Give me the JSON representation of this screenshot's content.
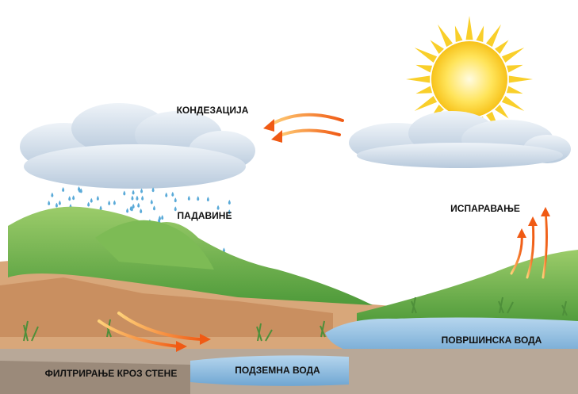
{
  "labels": {
    "condensation": "КОНДЕЗАЦИЈА",
    "precipitation": "ПАДАВИНЕ",
    "evaporation": "ИСПАРАВАЊЕ",
    "surface_water": "ПОВРШИНСКА ВОДА",
    "groundwater": "ПОДЗЕМНА ВОДА",
    "filtration": "ФИЛТРИРАЊЕ КРОЗ СТЕНЕ"
  }
}
